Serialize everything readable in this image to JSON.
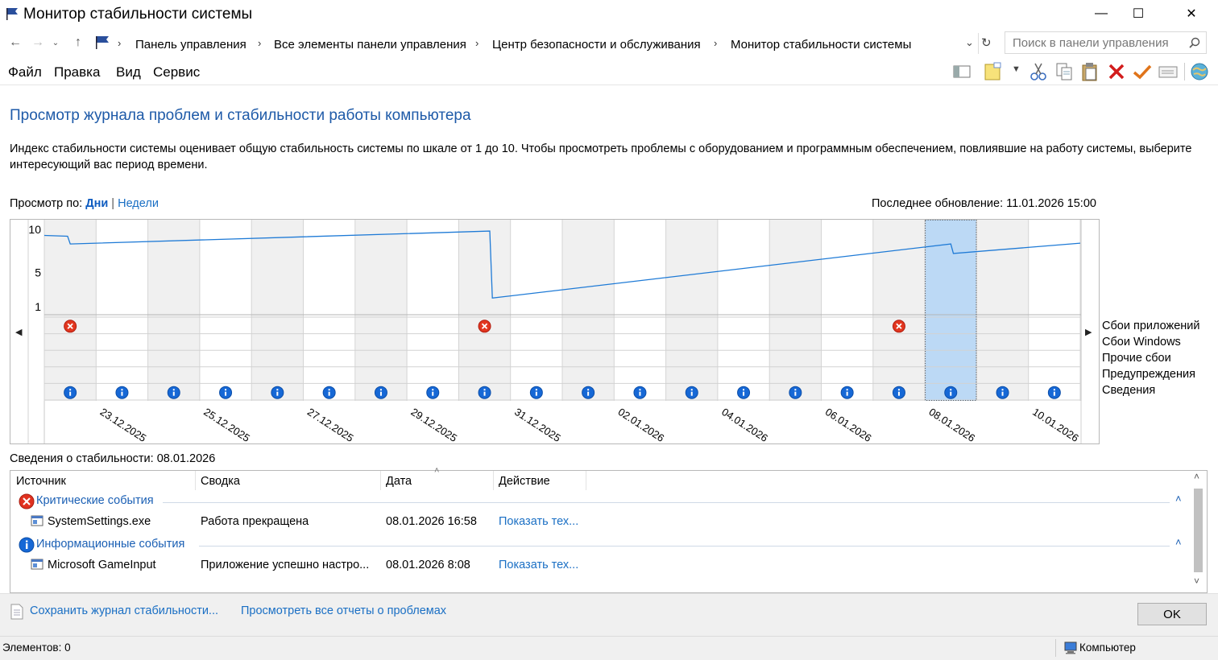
{
  "window": {
    "title": "Монитор стабильности системы",
    "minimize": "—",
    "maximize": "☐",
    "close": "✕"
  },
  "address": {
    "crumbs": [
      "Панель управления",
      "Все элементы панели управления",
      "Центр безопасности и обслуживания",
      "Монитор стабильности системы"
    ],
    "search_placeholder": "Поиск в панели управления"
  },
  "menu": [
    "Файл",
    "Правка",
    "Вид",
    "Сервис"
  ],
  "content": {
    "heading": "Просмотр журнала проблем и стабильности работы компьютера",
    "description": "Индекс стабильности системы оценивает общую стабильность системы по шкале от 1 до 10. Чтобы просмотреть проблемы с оборудованием и программным обеспечением, повлиявшие на работу системы, выберите интересующий вас период времени.",
    "view_by_label": "Просмотр по:",
    "view_days": "Дни",
    "view_weeks": "Недели",
    "last_update": "Последнее обновление: 11.01.2026 15:00",
    "stability_info": "Сведения о стабильности: 08.01.2026"
  },
  "chart_data": {
    "type": "line",
    "y_ticks": [
      "10",
      "5",
      "1"
    ],
    "ylim": [
      1,
      10
    ],
    "date_labels": [
      "23.12.2025",
      "25.12.2025",
      "27.12.2025",
      "29.12.2025",
      "31.12.2025",
      "02.01.2026",
      "04.01.2026",
      "06.01.2026",
      "08.01.2026",
      "10.01.2026"
    ],
    "days": [
      "22.12",
      "23.12",
      "24.12",
      "25.12",
      "26.12",
      "27.12",
      "28.12",
      "29.12",
      "30.12",
      "31.12",
      "01.01",
      "02.01",
      "03.01",
      "04.01",
      "05.01",
      "06.01",
      "07.01",
      "08.01",
      "09.01",
      "10.01",
      "11.01"
    ],
    "selected_day": "08.01",
    "stability_index": [
      [
        0,
        9.3
      ],
      [
        0.45,
        9.2
      ],
      [
        0.5,
        8.3
      ],
      [
        8.6,
        9.8
      ],
      [
        8.65,
        2.0
      ],
      [
        17.5,
        8.3
      ],
      [
        17.55,
        7.2
      ],
      [
        20.0,
        8.4
      ]
    ],
    "row_labels": [
      "Сбои приложений",
      "Сбои Windows",
      "Прочие сбои",
      "Предупреждения",
      "Сведения"
    ],
    "app_failures_days": [
      0,
      8,
      16
    ],
    "info_days": [
      0,
      1,
      2,
      3,
      4,
      5,
      6,
      7,
      8,
      9,
      10,
      11,
      12,
      13,
      14,
      15,
      16,
      17,
      18,
      19
    ]
  },
  "table": {
    "headers": [
      "Источник",
      "Сводка",
      "Дата",
      "Действие"
    ],
    "groups": [
      {
        "name": "Критические события",
        "rows": [
          {
            "source": "SystemSettings.exe",
            "summary": "Работа прекращена",
            "date": "08.01.2026 16:58",
            "action": "Показать тех..."
          }
        ]
      },
      {
        "name": "Информационные события",
        "rows": [
          {
            "source": "Microsoft GameInput",
            "summary": "Приложение успешно настро...",
            "date": "08.01.2026 8:08",
            "action": "Показать тех..."
          }
        ]
      }
    ]
  },
  "bottom": {
    "save_link": "Сохранить журнал стабильности...",
    "reports_link": "Просмотреть все отчеты о проблемах",
    "ok": "OK"
  },
  "status": {
    "items": "Элементов: 0",
    "zone": "Компьютер"
  }
}
